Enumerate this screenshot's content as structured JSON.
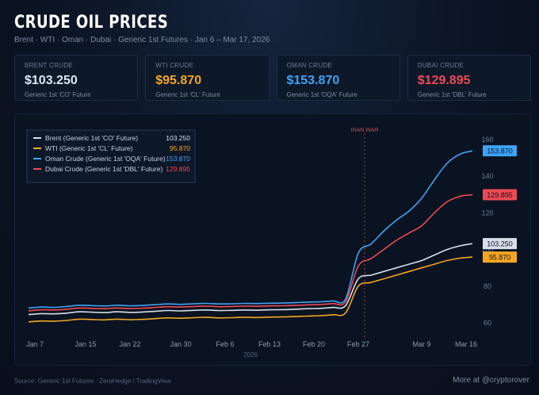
{
  "header": {
    "title": "CRUDE OIL PRICES",
    "subtitle": "Brent · WTI · Oman · Dubai · Generic 1st Futures · Jan 6 – Mar 17, 2026"
  },
  "cards": [
    {
      "label": "BRENT CRUDE",
      "value": "$103.250",
      "sub": "Generic 1st 'CO' Future",
      "color": "#dfe6f1"
    },
    {
      "label": "WTI CRUDE",
      "value": "$95.870",
      "sub": "Generic 1st 'CL' Future",
      "color": "#f5a623"
    },
    {
      "label": "OMAN CRUDE",
      "value": "$153.870",
      "sub": "Generic 1st 'OQA' Future",
      "color": "#3fa3f5"
    },
    {
      "label": "DUBAI CRUDE",
      "value": "$129.895",
      "sub": "Generic 1st 'DBL' Future",
      "color": "#ee4a55"
    }
  ],
  "footer": {
    "source": "Source: Generic 1st Futures · ZeroHedge / TradingView",
    "credit": "More at @cryptorover"
  },
  "chart_data": {
    "type": "line",
    "x": [
      "Jan 6",
      "Jan 8",
      "Jan 10",
      "Jan 12",
      "Jan 14",
      "Jan 16",
      "Jan 18",
      "Jan 20",
      "Jan 22",
      "Jan 24",
      "Jan 26",
      "Jan 28",
      "Jan 30",
      "Feb 1",
      "Feb 3",
      "Feb 5",
      "Feb 7",
      "Feb 9",
      "Feb 11",
      "Feb 13",
      "Feb 15",
      "Feb 17",
      "Feb 19",
      "Feb 21",
      "Feb 23",
      "Feb 25",
      "Feb 27",
      "Mar 1",
      "Mar 3",
      "Mar 5",
      "Mar 7",
      "Mar 9",
      "Mar 11",
      "Mar 13",
      "Mar 15",
      "Mar 17"
    ],
    "series": [
      {
        "name": "Oman Crude (Generic 1st 'OQA' Future)",
        "color": "#3fa3f5",
        "last": "153.870",
        "values": [
          68,
          68.6,
          68.4,
          68.9,
          69.6,
          69.4,
          69.2,
          69.6,
          69.3,
          69.5,
          69.9,
          70.3,
          70.1,
          70.4,
          70.6,
          70.3,
          70.4,
          70.6,
          70.5,
          70.7,
          70.8,
          71,
          71.3,
          71.5,
          72,
          73,
          98,
          103,
          110,
          116,
          121,
          128,
          138,
          147,
          152,
          153.87
        ]
      },
      {
        "name": "Dubai Crude (Generic 1st 'DBL' Future)",
        "color": "#ee4a55",
        "last": "129.895",
        "values": [
          66.5,
          67.1,
          67,
          67.4,
          68.1,
          67.9,
          67.7,
          68.1,
          67.8,
          68,
          68.4,
          68.8,
          68.6,
          68.9,
          69.1,
          68.8,
          68.9,
          69.1,
          69,
          69.2,
          69.3,
          69.5,
          69.8,
          70,
          70.5,
          71.5,
          91,
          95,
          100,
          105,
          109,
          113,
          120,
          126,
          129,
          129.9
        ]
      },
      {
        "name": "Brent (Generic 1st 'CO' Future)",
        "color": "#d8dfea",
        "last": "103.250",
        "values": [
          64.5,
          65,
          64.9,
          65.3,
          66,
          65.8,
          65.6,
          66,
          65.7,
          65.9,
          66.3,
          66.7,
          66.5,
          66.8,
          67,
          66.7,
          66.8,
          67,
          66.9,
          67.1,
          67.2,
          67.4,
          67.7,
          67.9,
          68.4,
          69.4,
          84,
          86,
          88,
          90,
          92,
          94,
          97,
          100,
          102,
          103.25
        ]
      },
      {
        "name": "WTI (Generic 1st 'CL' Future)",
        "color": "#f5a623",
        "last": "95.870",
        "values": [
          60.5,
          61,
          60.9,
          61.3,
          62,
          61.8,
          61.6,
          62,
          61.7,
          61.9,
          62.3,
          62.7,
          62.5,
          62.8,
          63,
          62.7,
          62.8,
          63,
          62.9,
          63.1,
          63.2,
          63.4,
          63.7,
          63.9,
          64.4,
          65.4,
          80,
          82,
          84,
          86,
          88,
          90,
          92,
          94,
          95.3,
          95.87
        ]
      }
    ],
    "legend_order": [
      2,
      3,
      0,
      1
    ],
    "legend_placement": "top-left",
    "xticks": [
      {
        "label": "Jan 7",
        "x": "Jan 7"
      },
      {
        "label": "Jan 15",
        "x": "Jan 15"
      },
      {
        "label": "Jan 22",
        "x": "Jan 22"
      },
      {
        "label": "Jan 30",
        "x": "Jan 30"
      },
      {
        "label": "Feb 6",
        "x": "Feb 6"
      },
      {
        "label": "Feb 13",
        "x": "Feb 13"
      },
      {
        "label": "Feb 20",
        "x": "Feb 20"
      },
      {
        "label": "Feb 27",
        "x": "Feb 27"
      },
      {
        "label": "Mar 9",
        "x": "Mar 9"
      },
      {
        "label": "Mar 16",
        "x": "Mar 16"
      }
    ],
    "year_label": "2026",
    "yticks": [
      "60",
      "80",
      "100",
      "120",
      "140",
      "160"
    ],
    "ylim": [
      55,
      165
    ],
    "annotation": {
      "label": "IRAN WAR",
      "x": "Feb 28"
    },
    "grid": false
  }
}
